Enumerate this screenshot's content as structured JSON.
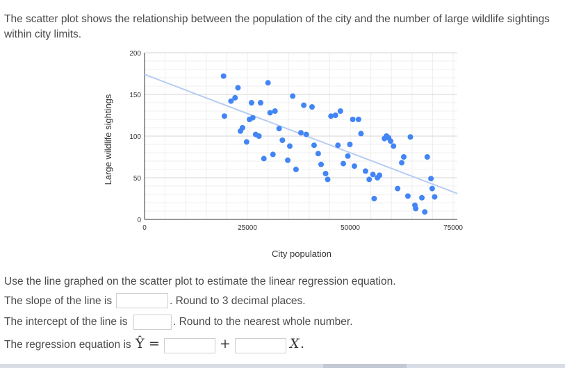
{
  "prompt": {
    "text": "The scatter plot shows the relationship between the population of the city and the number of large wildlife sightings within city limits."
  },
  "chart_data": {
    "type": "scatter",
    "title": "",
    "xlabel": "City population",
    "ylabel": "Large wildlife sightings",
    "xlim": [
      0,
      76000
    ],
    "ylim": [
      0,
      200
    ],
    "xticks": [
      0,
      25000,
      50000,
      75000
    ],
    "yticks": [
      0,
      50,
      100,
      150,
      200
    ],
    "grid": true,
    "point_color": "#4285f4",
    "trendline_color": "#b7cdf3",
    "trendline": {
      "slope": -0.00188,
      "intercept": 174
    },
    "points": [
      [
        19200,
        172
      ],
      [
        19400,
        124
      ],
      [
        21000,
        142
      ],
      [
        22000,
        146
      ],
      [
        22700,
        158
      ],
      [
        23300,
        106
      ],
      [
        23800,
        110
      ],
      [
        24800,
        93
      ],
      [
        25500,
        120
      ],
      [
        26000,
        140
      ],
      [
        26300,
        122
      ],
      [
        27000,
        102
      ],
      [
        27800,
        100
      ],
      [
        28200,
        140
      ],
      [
        29000,
        73
      ],
      [
        30000,
        164
      ],
      [
        30500,
        128
      ],
      [
        31200,
        78
      ],
      [
        31700,
        130
      ],
      [
        32700,
        109
      ],
      [
        33500,
        95
      ],
      [
        34800,
        71
      ],
      [
        35300,
        88
      ],
      [
        36000,
        148
      ],
      [
        36800,
        60
      ],
      [
        38000,
        104
      ],
      [
        38700,
        137
      ],
      [
        39300,
        102
      ],
      [
        40700,
        135
      ],
      [
        41200,
        89
      ],
      [
        42200,
        79
      ],
      [
        42900,
        66
      ],
      [
        44000,
        55
      ],
      [
        44500,
        48
      ],
      [
        45300,
        124
      ],
      [
        46400,
        125
      ],
      [
        47600,
        130
      ],
      [
        47000,
        89
      ],
      [
        48300,
        67
      ],
      [
        49400,
        76
      ],
      [
        49900,
        90
      ],
      [
        50600,
        120
      ],
      [
        51000,
        64
      ],
      [
        52000,
        120
      ],
      [
        52600,
        103
      ],
      [
        53700,
        58
      ],
      [
        54600,
        48
      ],
      [
        55500,
        54
      ],
      [
        55800,
        25
      ],
      [
        56600,
        50
      ],
      [
        57100,
        53
      ],
      [
        58300,
        97
      ],
      [
        58800,
        100
      ],
      [
        59300,
        98
      ],
      [
        59800,
        94
      ],
      [
        60500,
        88
      ],
      [
        61500,
        37
      ],
      [
        62500,
        68
      ],
      [
        63000,
        75
      ],
      [
        64000,
        28
      ],
      [
        64600,
        99
      ],
      [
        65700,
        17
      ],
      [
        65900,
        13
      ],
      [
        67400,
        26
      ],
      [
        68100,
        9
      ],
      [
        68700,
        75
      ],
      [
        69600,
        49
      ],
      [
        69900,
        37
      ],
      [
        70500,
        27
      ]
    ]
  },
  "instructions": "Use the line graphed on the scatter plot to estimate the linear regression equation.",
  "slope": {
    "label": "The slope of the line is",
    "value": "",
    "suffix": ". Round to 3 decimal places."
  },
  "intercept": {
    "label": "The intercept of the line is",
    "value": "",
    "suffix": ". Round to the nearest whole number."
  },
  "equation": {
    "label": "The regression equation is",
    "y_hat": "Ŷ",
    "equals": "=",
    "plus": "+",
    "x_var": "X",
    "period": ".",
    "intercept_value": "",
    "slope_value": ""
  }
}
